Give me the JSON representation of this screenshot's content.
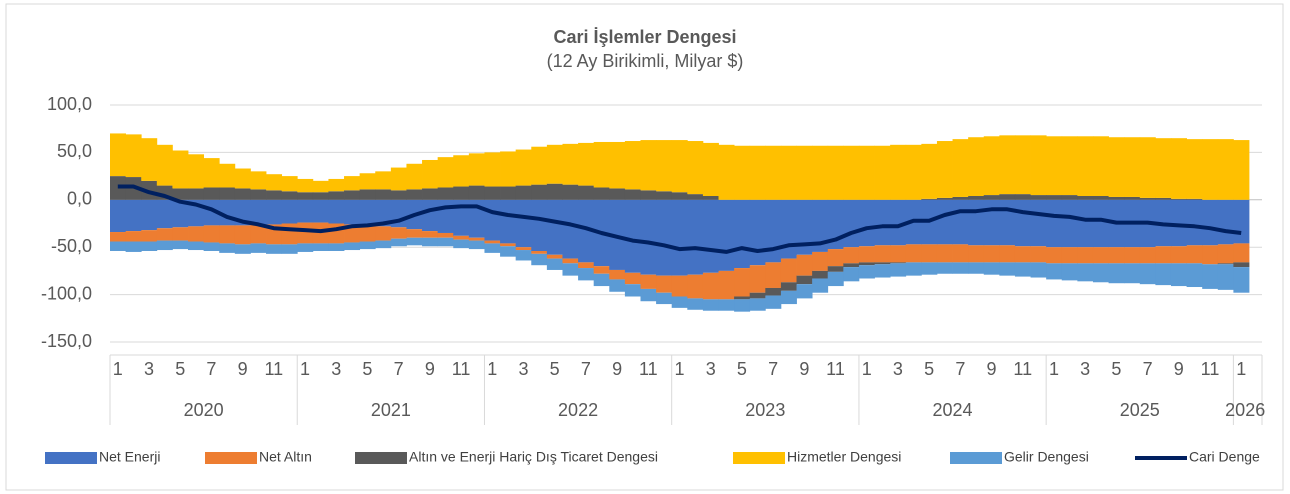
{
  "chart_data": {
    "type": "stacked-bar-line",
    "title": "Cari İşlemler Dengesi",
    "subtitle": "(12 Ay Birikimli, Milyar $)",
    "categories": [
      "1",
      null,
      "3",
      null,
      "5",
      null,
      "7",
      null,
      "9",
      null,
      "11",
      null,
      "1",
      null,
      "3",
      null,
      "5",
      null,
      "7",
      null,
      "9",
      null,
      "11",
      null,
      "1",
      null,
      "3",
      null,
      "5",
      null,
      "7",
      null,
      "9",
      null,
      "11",
      null,
      "1",
      null,
      "3",
      null,
      "5",
      null,
      "7",
      null,
      "9",
      null,
      "11",
      null,
      "1",
      null,
      "3",
      null,
      "5",
      null,
      "7",
      null,
      "9",
      null,
      "11",
      null,
      "1",
      null,
      "3",
      null,
      "5",
      null,
      "7",
      null,
      "9",
      null,
      "11",
      null,
      "1"
    ],
    "year_groups": [
      "2020",
      "2021",
      "2022",
      "2023",
      "2024",
      "2025",
      "2026"
    ],
    "ylim": [
      -150,
      100
    ],
    "yticks": [
      {
        "value": 100,
        "label": "100,0"
      },
      {
        "value": 50,
        "label": "50,0"
      },
      {
        "value": 0,
        "label": "0,0"
      },
      {
        "value": -50,
        "label": "-50,0"
      },
      {
        "value": -100,
        "label": "-100,0"
      },
      {
        "value": -150,
        "label": "-150,0"
      }
    ],
    "grid": true,
    "legend": "bottom",
    "series": [
      {
        "name": "Net Enerji",
        "color": "#4472c4",
        "kind": "bar",
        "values": [
          -34,
          -33,
          -32,
          -30,
          -29,
          -28,
          -27,
          -27,
          -27,
          -26,
          -26,
          -25,
          -24,
          -24,
          -25,
          -26,
          -27,
          -28,
          -29,
          -31,
          -33,
          -35,
          -38,
          -40,
          -43,
          -46,
          -50,
          -54,
          -58,
          -62,
          -66,
          -70,
          -74,
          -77,
          -79,
          -80,
          -80,
          -79,
          -77,
          -75,
          -72,
          -69,
          -66,
          -62,
          -58,
          -55,
          -52,
          -50,
          -49,
          -48,
          -48,
          -47,
          -47,
          -47,
          -47,
          -48,
          -48,
          -48,
          -49,
          -49,
          -50,
          -50,
          -50,
          -50,
          -50,
          -50,
          -50,
          -49,
          -49,
          -48,
          -48,
          -47,
          -46
        ]
      },
      {
        "name": "Net Altın",
        "color": "#ed7d31",
        "kind": "bar",
        "values": [
          -10,
          -11,
          -12,
          -13,
          -14,
          -16,
          -18,
          -19,
          -20,
          -20,
          -21,
          -22,
          -22,
          -22,
          -21,
          -19,
          -17,
          -15,
          -12,
          -9,
          -7,
          -5,
          -4,
          -3,
          -3,
          -3,
          -3,
          -3,
          -4,
          -5,
          -6,
          -8,
          -10,
          -12,
          -15,
          -18,
          -22,
          -25,
          -28,
          -30,
          -30,
          -29,
          -27,
          -25,
          -22,
          -20,
          -18,
          -17,
          -17,
          -18,
          -18,
          -19,
          -19,
          -19,
          -19,
          -18,
          -18,
          -18,
          -17,
          -17,
          -17,
          -17,
          -17,
          -17,
          -17,
          -17,
          -17,
          -18,
          -18,
          -19,
          -20,
          -20,
          -20
        ]
      },
      {
        "name": "Altın ve Enerji Hariç Dış Ticaret Dengesi",
        "color": "#595959",
        "kind": "bar",
        "values": [
          25,
          24,
          20,
          15,
          12,
          12,
          13,
          13,
          12,
          11,
          10,
          9,
          8,
          8,
          9,
          10,
          11,
          11,
          10,
          11,
          12,
          13,
          14,
          15,
          14,
          14,
          15,
          16,
          17,
          16,
          15,
          13,
          12,
          11,
          10,
          9,
          8,
          6,
          4,
          0,
          -3,
          -6,
          -8,
          -9,
          -9,
          -8,
          -6,
          -4,
          -3,
          -2,
          -1,
          0,
          1,
          2,
          3,
          4,
          5,
          6,
          6,
          5,
          5,
          5,
          4,
          4,
          3,
          3,
          2,
          2,
          1,
          1,
          0,
          -1,
          -5
        ]
      },
      {
        "name": "Hizmetler Dengesi",
        "color": "#ffc000",
        "kind": "bar",
        "values": [
          45,
          45,
          45,
          43,
          40,
          36,
          31,
          25,
          21,
          19,
          17,
          16,
          14,
          12,
          13,
          15,
          17,
          19,
          24,
          27,
          30,
          32,
          33,
          34,
          36,
          37,
          38,
          40,
          41,
          43,
          45,
          48,
          49,
          51,
          53,
          54,
          55,
          56,
          56,
          58,
          57,
          57,
          57,
          57,
          57,
          57,
          57,
          57,
          57,
          57,
          58,
          58,
          58,
          60,
          61,
          62,
          62,
          62,
          62,
          63,
          62,
          62,
          63,
          63,
          63,
          63,
          64,
          63,
          64,
          63,
          64,
          64,
          63
        ]
      },
      {
        "name": "Gelir Dengesi",
        "color": "#5b9bd5",
        "kind": "bar",
        "values": [
          -10,
          -11,
          -10,
          -10,
          -9,
          -9,
          -9,
          -10,
          -10,
          -10,
          -10,
          -10,
          -9,
          -8,
          -8,
          -8,
          -8,
          -8,
          -8,
          -8,
          -9,
          -9,
          -9,
          -9,
          -10,
          -11,
          -11,
          -12,
          -12,
          -13,
          -13,
          -13,
          -13,
          -13,
          -13,
          -12,
          -12,
          -12,
          -12,
          -12,
          -13,
          -13,
          -14,
          -14,
          -15,
          -15,
          -15,
          -15,
          -14,
          -14,
          -14,
          -14,
          -13,
          -12,
          -12,
          -12,
          -13,
          -14,
          -15,
          -16,
          -17,
          -18,
          -19,
          -20,
          -21,
          -21,
          -22,
          -23,
          -24,
          -25,
          -26,
          -27,
          -27
        ]
      },
      {
        "name": "Cari Denge",
        "color": "#002060",
        "kind": "line",
        "values": [
          14,
          14,
          8,
          4,
          -2,
          -5,
          -10,
          -18,
          -23,
          -26,
          -30,
          -31,
          -32,
          -33,
          -31,
          -28,
          -27,
          -25,
          -22,
          -16,
          -11,
          -8,
          -7,
          -7,
          -13,
          -16,
          -18,
          -20,
          -23,
          -26,
          -30,
          -35,
          -39,
          -43,
          -45,
          -48,
          -52,
          -51,
          -53,
          -55,
          -51,
          -54,
          -52,
          -48,
          -47,
          -46,
          -42,
          -35,
          -30,
          -28,
          -28,
          -22,
          -22,
          -16,
          -12,
          -12,
          -10,
          -10,
          -13,
          -15,
          -17,
          -18,
          -21,
          -21,
          -24,
          -24,
          -24,
          -26,
          -27,
          -28,
          -30,
          -33,
          -35
        ]
      }
    ]
  }
}
